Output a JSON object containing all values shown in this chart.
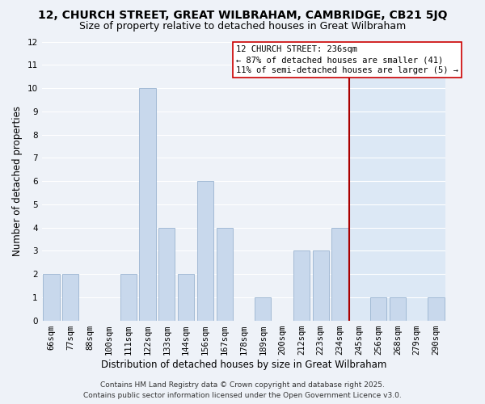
{
  "title1": "12, CHURCH STREET, GREAT WILBRAHAM, CAMBRIDGE, CB21 5JQ",
  "title2": "Size of property relative to detached houses in Great Wilbraham",
  "xlabel": "Distribution of detached houses by size in Great Wilbraham",
  "ylabel": "Number of detached properties",
  "bar_labels": [
    "66sqm",
    "77sqm",
    "88sqm",
    "100sqm",
    "111sqm",
    "122sqm",
    "133sqm",
    "144sqm",
    "156sqm",
    "167sqm",
    "178sqm",
    "189sqm",
    "200sqm",
    "212sqm",
    "223sqm",
    "234sqm",
    "245sqm",
    "256sqm",
    "268sqm",
    "279sqm",
    "290sqm"
  ],
  "bar_values": [
    2,
    2,
    0,
    0,
    2,
    10,
    4,
    2,
    6,
    4,
    0,
    1,
    0,
    3,
    3,
    4,
    0,
    1,
    1,
    0,
    1
  ],
  "bar_color": "#c8d8ec",
  "bar_edge_color": "#9ab4d0",
  "ylim": [
    0,
    12
  ],
  "yticks": [
    0,
    1,
    2,
    3,
    4,
    5,
    6,
    7,
    8,
    9,
    10,
    11,
    12
  ],
  "vline_x_idx": 15.5,
  "vline_color": "#aa0000",
  "right_bg_color": "#dce8f5",
  "annotation_text": "12 CHURCH STREET: 236sqm\n← 87% of detached houses are smaller (41)\n11% of semi-detached houses are larger (5) →",
  "annotation_box_color": "#ffffff",
  "annotation_box_edge": "#cc0000",
  "footer1": "Contains HM Land Registry data © Crown copyright and database right 2025.",
  "footer2": "Contains public sector information licensed under the Open Government Licence v3.0.",
  "bg_color": "#eef2f8",
  "grid_color": "#ffffff",
  "title_fontsize": 10,
  "subtitle_fontsize": 9,
  "axis_label_fontsize": 8.5,
  "tick_fontsize": 7.5,
  "annotation_fontsize": 7.5,
  "footer_fontsize": 6.5
}
